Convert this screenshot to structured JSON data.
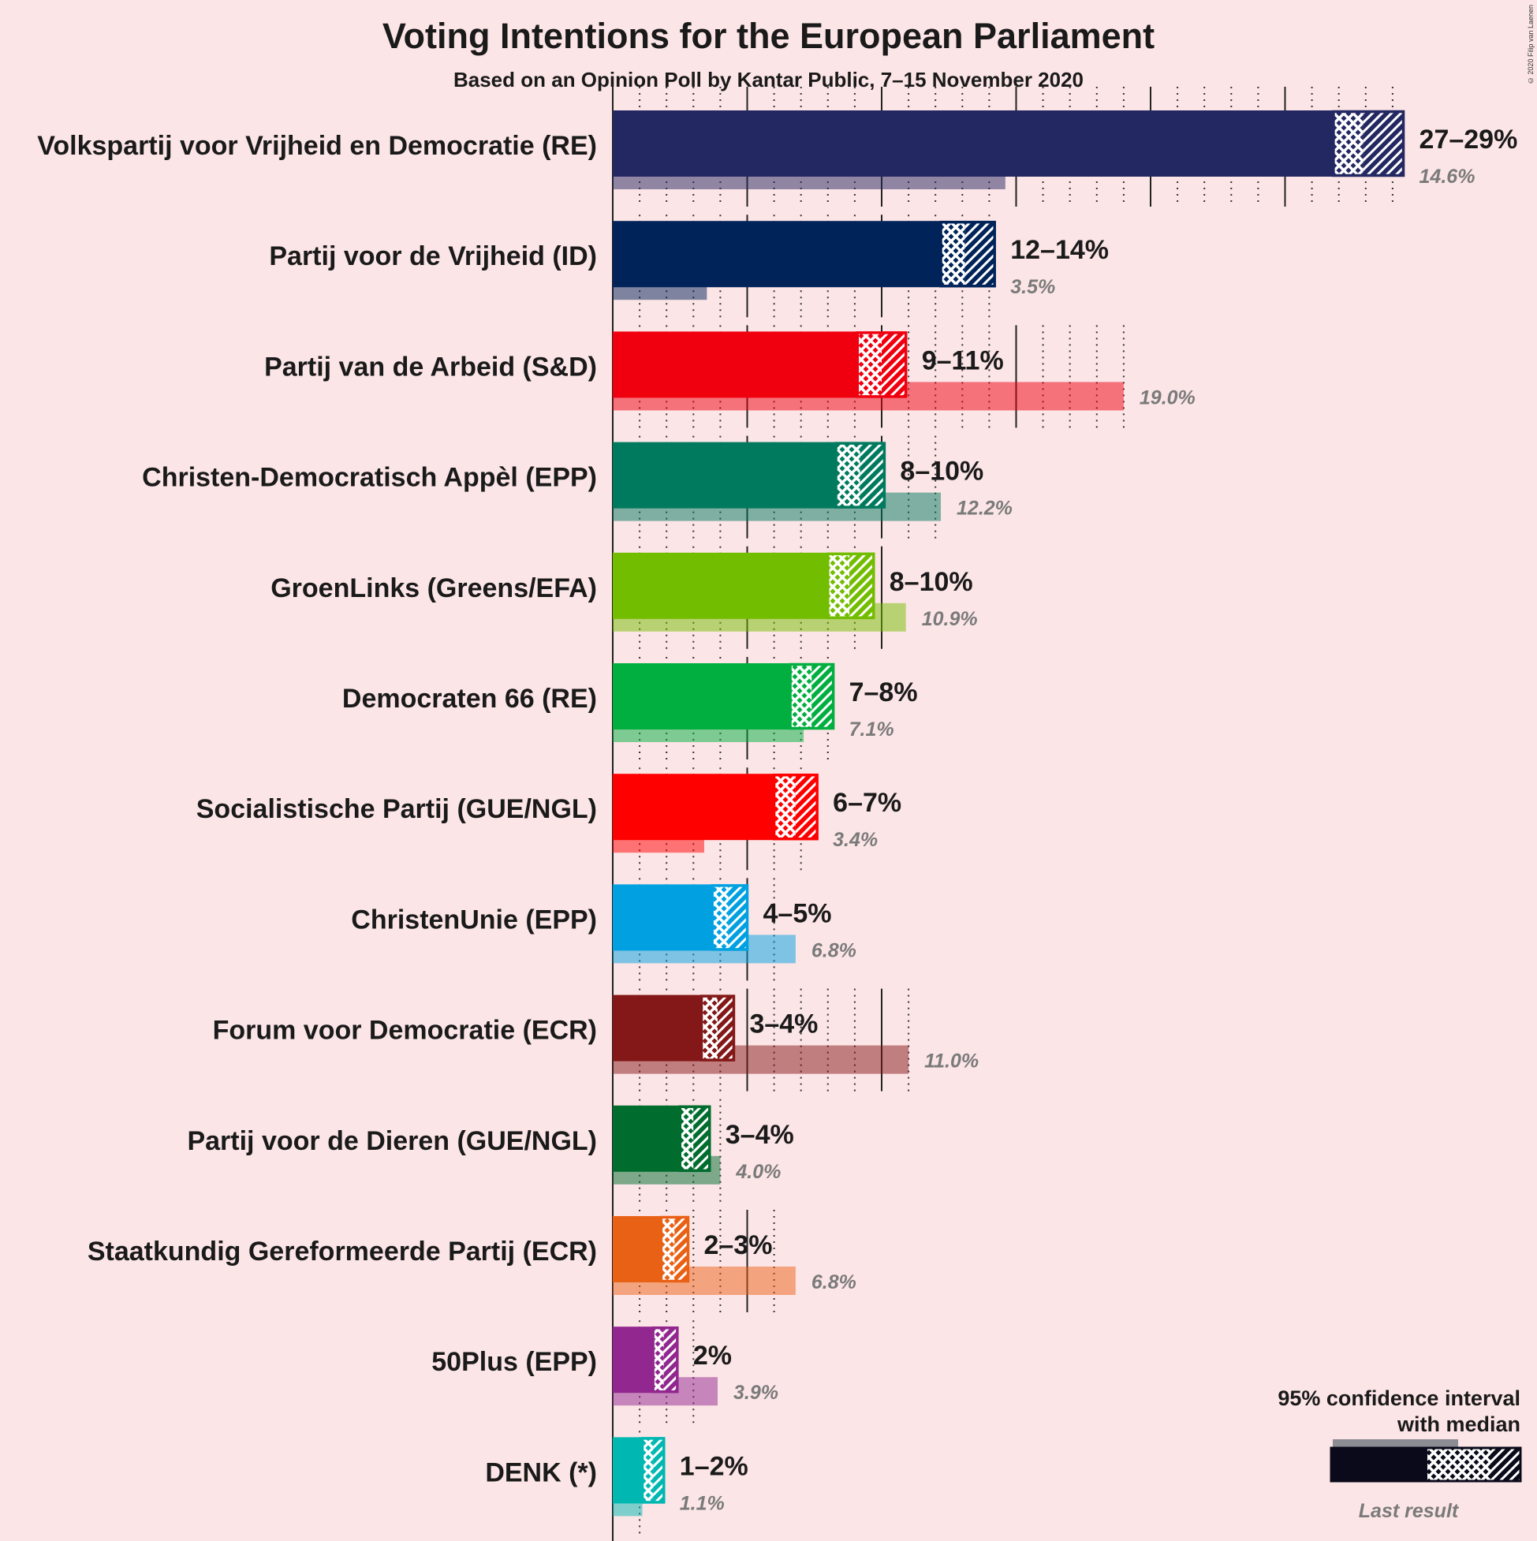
{
  "title": "Voting Intentions for the European Parliament",
  "subtitle": "Based on an Opinion Poll by Kantar Public, 7–15 November 2020",
  "copyright": "© 2020 Filip van Laenen",
  "legend": {
    "line1": "95% confidence interval",
    "line2": "with median",
    "last_result": "Last result",
    "color": "#0A0A1A"
  },
  "chart_data": {
    "type": "bar",
    "title": "Voting Intentions for the European Parliament",
    "subtitle": "Based on an Opinion Poll by Kantar Public, 7–15 November 2020",
    "x_unit": "%",
    "xlim": [
      0,
      30
    ],
    "grid": true,
    "legend_position": "bottom-right",
    "series": [
      {
        "party": "Volkspartij voor Vrijheid en Democratie (RE)",
        "color": "#242862",
        "ci_low": 26.8,
        "median": 27.9,
        "ci_high": 29.4,
        "range_label": "27–29%",
        "last_result": 14.6,
        "last_label": "14.6%"
      },
      {
        "party": "Partij voor de Vrijheid (ID)",
        "color": "#00245A",
        "ci_low": 12.2,
        "median": 13.1,
        "ci_high": 14.2,
        "range_label": "12–14%",
        "last_result": 3.5,
        "last_label": "3.5%"
      },
      {
        "party": "Partij van de Arbeid (S&D)",
        "color": "#F0000F",
        "ci_low": 9.1,
        "median": 10.0,
        "ci_high": 10.9,
        "range_label": "9–11%",
        "last_result": 19.0,
        "last_label": "19.0%"
      },
      {
        "party": "Christen-Democratisch Appèl (EPP)",
        "color": "#007A5E",
        "ci_low": 8.3,
        "median": 9.2,
        "ci_high": 10.1,
        "range_label": "8–10%",
        "last_result": 12.2,
        "last_label": "12.2%"
      },
      {
        "party": "GroenLinks (Greens/EFA)",
        "color": "#73BD00",
        "ci_low": 8.0,
        "median": 8.8,
        "ci_high": 9.7,
        "range_label": "8–10%",
        "last_result": 10.9,
        "last_label": "10.9%"
      },
      {
        "party": "Democraten 66 (RE)",
        "color": "#00AF3F",
        "ci_low": 6.6,
        "median": 7.4,
        "ci_high": 8.2,
        "range_label": "7–8%",
        "last_result": 7.1,
        "last_label": "7.1%"
      },
      {
        "party": "Socialistische Partij (GUE/NGL)",
        "color": "#FF0000",
        "ci_low": 6.0,
        "median": 6.8,
        "ci_high": 7.6,
        "range_label": "6–7%",
        "last_result": 3.4,
        "last_label": "3.4%"
      },
      {
        "party": "ChristenUnie (EPP)",
        "color": "#00A0E1",
        "ci_low": 3.7,
        "median": 4.3,
        "ci_high": 5.0,
        "range_label": "4–5%",
        "last_result": 6.8,
        "last_label": "6.8%"
      },
      {
        "party": "Forum voor Democratie (ECR)",
        "color": "#841818",
        "ci_low": 3.3,
        "median": 3.9,
        "ci_high": 4.5,
        "range_label": "3–4%",
        "last_result": 11.0,
        "last_label": "11.0%"
      },
      {
        "party": "Partij voor de Dieren (GUE/NGL)",
        "color": "#006C2E",
        "ci_low": 2.5,
        "median": 3.0,
        "ci_high": 3.6,
        "range_label": "3–4%",
        "last_result": 4.0,
        "last_label": "4.0%"
      },
      {
        "party": "Staatkundig Gereformeerde Partij (ECR)",
        "color": "#E96115",
        "ci_low": 1.8,
        "median": 2.3,
        "ci_high": 2.8,
        "range_label": "2–3%",
        "last_result": 6.8,
        "last_label": "6.8%"
      },
      {
        "party": "50Plus (EPP)",
        "color": "#92278F",
        "ci_low": 1.5,
        "median": 1.9,
        "ci_high": 2.4,
        "range_label": "2%",
        "last_result": 3.9,
        "last_label": "3.9%"
      },
      {
        "party": "DENK (*)",
        "color": "#00B7B2",
        "ci_low": 1.1,
        "median": 1.5,
        "ci_high": 1.9,
        "range_label": "1–2%",
        "last_result": 1.1,
        "last_label": "1.1%"
      }
    ]
  }
}
